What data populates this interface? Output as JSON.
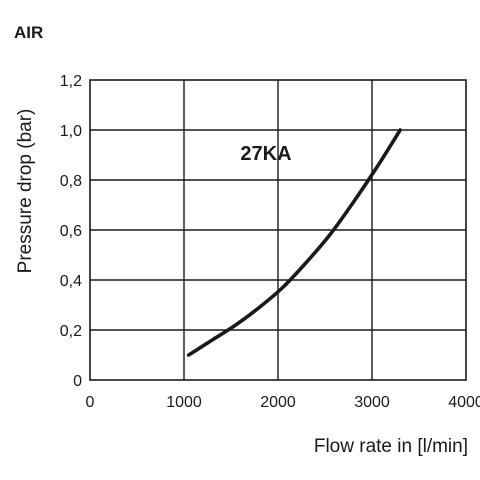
{
  "chart_data": {
    "type": "line",
    "title": "AIR",
    "xlabel": "Flow rate in [l/min]",
    "ylabel": "Pressure drop (bar)",
    "xlim": [
      0,
      4000
    ],
    "ylim": [
      0,
      1.2
    ],
    "x_ticks": [
      "0",
      "1000",
      "2000",
      "3000",
      "4000"
    ],
    "y_ticks": [
      "0",
      "0,2",
      "0,4",
      "0,6",
      "0,8",
      "1,0",
      "1,2"
    ],
    "grid": true,
    "legend": "none",
    "annotations": [
      {
        "text": "27KA",
        "x": 1600,
        "y": 0.88
      }
    ],
    "series": [
      {
        "name": "27KA",
        "color": "#1a1a1a",
        "points": [
          [
            1050,
            0.1
          ],
          [
            1300,
            0.16
          ],
          [
            1550,
            0.22
          ],
          [
            1800,
            0.29
          ],
          [
            2050,
            0.37
          ],
          [
            2300,
            0.47
          ],
          [
            2550,
            0.58
          ],
          [
            2800,
            0.71
          ],
          [
            3050,
            0.85
          ],
          [
            3300,
            1.0
          ]
        ]
      }
    ]
  }
}
